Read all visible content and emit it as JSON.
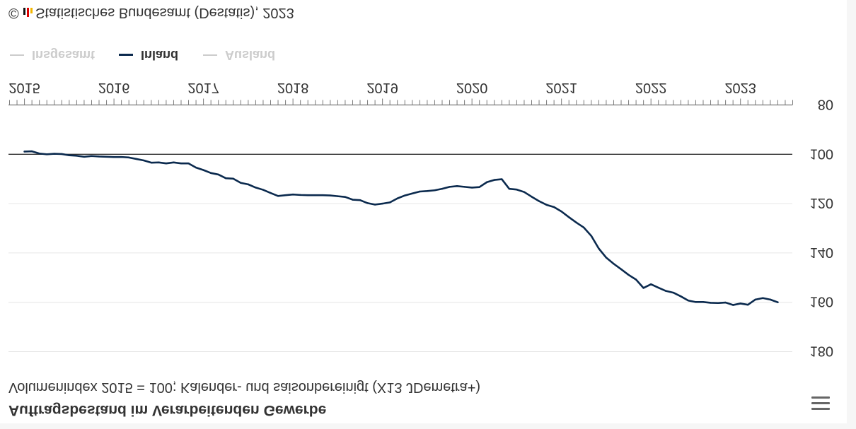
{
  "chart_data": {
    "type": "line",
    "title": "Auftragsbestand im Verarbeitenden Gewerbe",
    "subtitle": "Volumenindex 2015 = 100; Kalender- und saisonbereinigt (X13 JDemetra+)",
    "xlabel": "",
    "ylabel": "",
    "xlim": [
      "2014-11",
      "2023-08"
    ],
    "ylim": [
      80,
      180
    ],
    "reference_line": 100,
    "grid": true,
    "legend_position": "bottom-left",
    "x_tick_labels": [
      "2015",
      "2016",
      "2017",
      "2018",
      "2019",
      "2020",
      "2021",
      "2022",
      "2023"
    ],
    "y_ticks": [
      80,
      100,
      120,
      140,
      160,
      180
    ],
    "y_tick_labels": [
      "80",
      "100",
      "120",
      "140",
      "160",
      "180"
    ],
    "x": [
      "2015-01",
      "2015-02",
      "2015-03",
      "2015-04",
      "2015-05",
      "2015-06",
      "2015-07",
      "2015-08",
      "2015-09",
      "2015-10",
      "2015-11",
      "2015-12",
      "2016-01",
      "2016-02",
      "2016-03",
      "2016-04",
      "2016-05",
      "2016-06",
      "2016-07",
      "2016-08",
      "2016-09",
      "2016-10",
      "2016-11",
      "2016-12",
      "2017-01",
      "2017-02",
      "2017-03",
      "2017-04",
      "2017-05",
      "2017-06",
      "2017-07",
      "2017-08",
      "2017-09",
      "2017-10",
      "2017-11",
      "2017-12",
      "2018-01",
      "2018-02",
      "2018-03",
      "2018-04",
      "2018-05",
      "2018-06",
      "2018-07",
      "2018-08",
      "2018-09",
      "2018-10",
      "2018-11",
      "2018-12",
      "2019-01",
      "2019-02",
      "2019-03",
      "2019-04",
      "2019-05",
      "2019-06",
      "2019-07",
      "2019-08",
      "2019-09",
      "2019-10",
      "2019-11",
      "2019-12",
      "2020-01",
      "2020-02",
      "2020-03",
      "2020-04",
      "2020-05",
      "2020-06",
      "2020-07",
      "2020-08",
      "2020-09",
      "2020-10",
      "2020-11",
      "2020-12",
      "2021-01",
      "2021-02",
      "2021-03",
      "2021-04",
      "2021-05",
      "2021-06",
      "2021-07",
      "2021-08",
      "2021-09",
      "2021-10",
      "2021-11",
      "2021-12",
      "2022-01",
      "2022-02",
      "2022-03",
      "2022-04",
      "2022-05",
      "2022-06",
      "2022-07",
      "2022-08",
      "2022-09",
      "2022-10",
      "2022-11",
      "2022-12",
      "2023-01",
      "2023-02",
      "2023-03",
      "2023-04",
      "2023-05",
      "2023-06"
    ],
    "series": [
      {
        "name": "Inland",
        "color": "#0b2a4e",
        "values": [
          98.9,
          98.8,
          99.7,
          100.0,
          99.8,
          99.9,
          100.4,
          100.6,
          101.0,
          100.7,
          100.9,
          101.0,
          101.1,
          101.1,
          101.3,
          101.9,
          102.5,
          103.4,
          103.3,
          103.7,
          103.3,
          103.7,
          103.7,
          105.4,
          106.4,
          107.6,
          108.2,
          109.7,
          109.9,
          111.6,
          112.2,
          113.5,
          114.4,
          115.7,
          116.9,
          116.6,
          116.3,
          116.5,
          116.6,
          116.6,
          116.6,
          116.7,
          117.0,
          117.3,
          118.4,
          118.6,
          119.8,
          120.4,
          120.0,
          119.5,
          117.9,
          116.7,
          115.9,
          115.1,
          114.9,
          114.6,
          114.0,
          113.2,
          112.9,
          113.2,
          113.5,
          113.3,
          111.3,
          110.4,
          110.1,
          114.0,
          114.3,
          115.3,
          117.2,
          119.0,
          120.5,
          121.4,
          123.2,
          125.5,
          127.7,
          129.7,
          133.1,
          138.2,
          141.9,
          144.4,
          146.6,
          148.9,
          150.8,
          154.2,
          152.7,
          154.1,
          155.4,
          156.1,
          157.6,
          159.3,
          159.9,
          159.9,
          160.2,
          160.3,
          160.1,
          161.1,
          160.5,
          161.0,
          158.9,
          158.3,
          158.9,
          160.0
        ]
      }
    ],
    "legend": [
      {
        "name": "Insgesamt",
        "visible": false,
        "color": "#cccccc"
      },
      {
        "name": "Inland",
        "visible": true,
        "color": "#0b2a4e"
      },
      {
        "name": "Ausland",
        "visible": false,
        "color": "#cccccc"
      }
    ],
    "credits": {
      "symbol": "©",
      "logo_icon": "destatis-logo-icon",
      "text": "Statistisches Bundesamt (Destatis), 2023"
    }
  },
  "menu": {
    "icon": "hamburger-icon"
  },
  "colors": {
    "text": "#333333",
    "grid": "#e6e6e6",
    "reference_line": "#333333",
    "axis": "#7a7a7a",
    "legend_hidden": "#cccccc"
  }
}
